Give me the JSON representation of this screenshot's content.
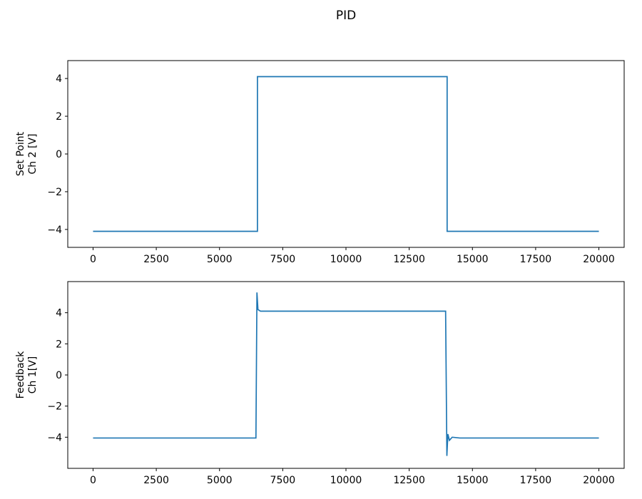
{
  "figure": {
    "title": "PID",
    "background": "#ffffff",
    "axes_color": "#000000"
  },
  "chart_data": [
    {
      "type": "line",
      "title": "",
      "xlabel": "",
      "ylabel_lines": [
        "Set Point",
        "Ch 2 [V]"
      ],
      "x": [
        0,
        6500,
        6500,
        14000,
        14000,
        20000
      ],
      "y": [
        -4.1,
        -4.1,
        4.1,
        4.1,
        -4.1,
        -4.1
      ],
      "xlim": [
        -1000,
        21000
      ],
      "ylim": [
        -4.95,
        4.95
      ],
      "xticks": [
        0,
        2500,
        5000,
        7500,
        10000,
        12500,
        15000,
        17500,
        20000
      ],
      "yticks": [
        -4,
        -2,
        0,
        2,
        4
      ],
      "line_color": "#1f77b4",
      "grid": false,
      "legend": null
    },
    {
      "type": "line",
      "title": "",
      "xlabel": "",
      "ylabel_lines": [
        "Feedback",
        "Ch 1[V]"
      ],
      "x": [
        0,
        6440,
        6480,
        6520,
        6620,
        6900,
        13940,
        13990,
        14030,
        14090,
        14200,
        14500,
        20000
      ],
      "y": [
        -4.05,
        -4.05,
        5.3,
        4.2,
        4.1,
        4.1,
        4.1,
        -5.2,
        -3.8,
        -4.2,
        -4.0,
        -4.05,
        -4.05
      ],
      "xlim": [
        -1000,
        21000
      ],
      "ylim": [
        -6.0,
        6.0
      ],
      "xticks": [
        0,
        2500,
        5000,
        7500,
        10000,
        12500,
        15000,
        17500,
        20000
      ],
      "yticks": [
        -4,
        -2,
        0,
        2,
        4
      ],
      "line_color": "#1f77b4",
      "grid": false,
      "legend": null
    }
  ]
}
